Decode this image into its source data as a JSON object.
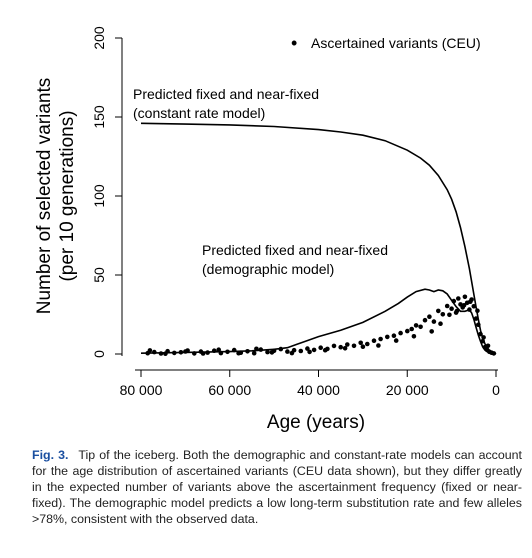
{
  "figure": {
    "legend_symbol": "•",
    "annotation_constant_line1": "Predicted fixed and near-fixed",
    "annotation_constant_line2": "(constant rate model)",
    "annotation_demographic_line1": "Predicted fixed and near-fixed",
    "annotation_demographic_line2": "(demographic model)"
  },
  "chart_data": {
    "type": "scatter",
    "xlabel": "Age (years)",
    "ylabel_line1": "Number of selected variants",
    "ylabel_line2": "(per 10 generations)",
    "x_reversed": true,
    "xlim": [
      80000,
      0
    ],
    "ylim": [
      0,
      200
    ],
    "x_ticks": [
      80000,
      60000,
      40000,
      20000,
      0
    ],
    "x_tick_labels": [
      "80 000",
      "60 000",
      "40 000",
      "20 000",
      "0"
    ],
    "y_ticks": [
      0,
      50,
      100,
      150,
      200
    ],
    "y_tick_labels": [
      "0",
      "50",
      "100",
      "150",
      "200"
    ],
    "legend": {
      "position": "top-right",
      "entries": [
        "Ascertained variants (CEU)"
      ]
    },
    "series": [
      {
        "name": "Predicted fixed and near-fixed (constant rate model)",
        "kind": "line",
        "x": [
          80000,
          70000,
          60000,
          50000,
          40000,
          35000,
          30000,
          25000,
          20000,
          17000,
          15000,
          13000,
          11000,
          10000,
          9000,
          8000,
          7000,
          6000,
          5000,
          4500,
          4000,
          3500,
          3000,
          2500,
          2000,
          1500,
          1000,
          500,
          0
        ],
        "y": [
          146,
          145.5,
          145,
          144,
          142,
          140.5,
          138.5,
          135,
          129,
          124,
          119.5,
          113,
          104,
          98,
          90,
          80,
          68,
          54,
          38,
          30,
          22,
          15,
          10,
          6.5,
          4,
          2.5,
          1.5,
          0.8,
          0
        ]
      },
      {
        "name": "Predicted fixed and near-fixed (demographic model)",
        "kind": "line",
        "x": [
          80000,
          70000,
          60000,
          55000,
          50000,
          47000,
          45000,
          43000,
          40000,
          35000,
          30000,
          25000,
          22000,
          20000,
          18000,
          16000,
          15000,
          14000,
          13000,
          12000,
          11000,
          10000,
          9000,
          8000,
          7000,
          6000,
          5500,
          5000,
          4500,
          4000,
          3500,
          3000,
          2500,
          2000,
          1000,
          0
        ],
        "y": [
          0.5,
          1,
          1.5,
          2,
          3,
          4,
          6,
          8,
          11,
          15,
          20,
          27,
          32,
          36,
          39.5,
          41,
          40.5,
          39.5,
          40.5,
          40,
          38,
          34,
          30,
          27,
          27,
          28,
          26,
          22,
          17,
          12,
          8,
          4.5,
          2.5,
          1.5,
          0.5,
          0.2
        ]
      },
      {
        "name": "Ascertained variants (CEU)",
        "kind": "scatter",
        "x": [
          78500,
          77000,
          75500,
          74000,
          72500,
          71000,
          69500,
          68000,
          66500,
          65000,
          63500,
          62000,
          60500,
          59000,
          57500,
          56000,
          54500,
          53000,
          51500,
          50000,
          48500,
          47000,
          45500,
          44000,
          42500,
          41000,
          39500,
          38000,
          36500,
          35000,
          33500,
          32000,
          30500,
          29000,
          27500,
          26000,
          24500,
          23000,
          21500,
          20000,
          19000,
          18000,
          17000,
          16000,
          15000,
          14000,
          13000,
          12000,
          11000,
          10000,
          9500,
          9000,
          8500,
          8000,
          7500,
          7000,
          6500,
          6000,
          5500,
          5000,
          4500,
          4000,
          3500,
          3000,
          2500,
          2000,
          1500,
          1000,
          500,
          78000,
          74500,
          70000,
          66000,
          62500,
          58000,
          54000,
          50500,
          46000,
          42000,
          38500,
          34000,
          30000,
          26500,
          22500,
          18500,
          14500,
          12500,
          10500,
          8800,
          7200,
          5800,
          4200,
          2800,
          1800
        ],
        "y": [
          0.5,
          1.2,
          0.3,
          1.8,
          0.7,
          1.1,
          2.2,
          0.4,
          1.5,
          0.9,
          2.1,
          0.6,
          1.4,
          2.5,
          0.8,
          1.7,
          0.5,
          2.8,
          1.2,
          2.0,
          3.1,
          1.5,
          2.4,
          1.9,
          3.4,
          2.6,
          4.0,
          3.2,
          5.1,
          4.3,
          6.0,
          5.2,
          7.1,
          6.3,
          8.4,
          9.5,
          10.8,
          11.6,
          13.2,
          14.5,
          15.8,
          18.1,
          17.2,
          21.4,
          23.6,
          20.5,
          27.3,
          25.1,
          30.4,
          28.7,
          33.5,
          26.2,
          35.1,
          31.4,
          29.5,
          36.2,
          32.4,
          28.1,
          34.5,
          30.2,
          22.4,
          18.5,
          12.6,
          8.1,
          4.3,
          2.6,
          1.4,
          0.8,
          0.4,
          2.3,
          0.2,
          1.6,
          0.3,
          2.7,
          0.5,
          3.3,
          1.0,
          0.6,
          1.3,
          2.4,
          3.6,
          4.6,
          5.4,
          8.5,
          11.2,
          14.3,
          19.2,
          24.8,
          27.2,
          30.8,
          33.1,
          27.4,
          10.5,
          5.2
        ]
      }
    ]
  },
  "caption": {
    "label": "Fig. 3.",
    "text": "Tip of the iceberg. Both the demographic and constant-rate models can account for the age distribution of ascertained variants (CEU data shown), but they differ greatly in the expected number of variants above the ascertainment frequency (fixed or near-fixed). The demographic model predicts a low long-term substitution rate and few alleles >78%, consistent with the observed data."
  }
}
